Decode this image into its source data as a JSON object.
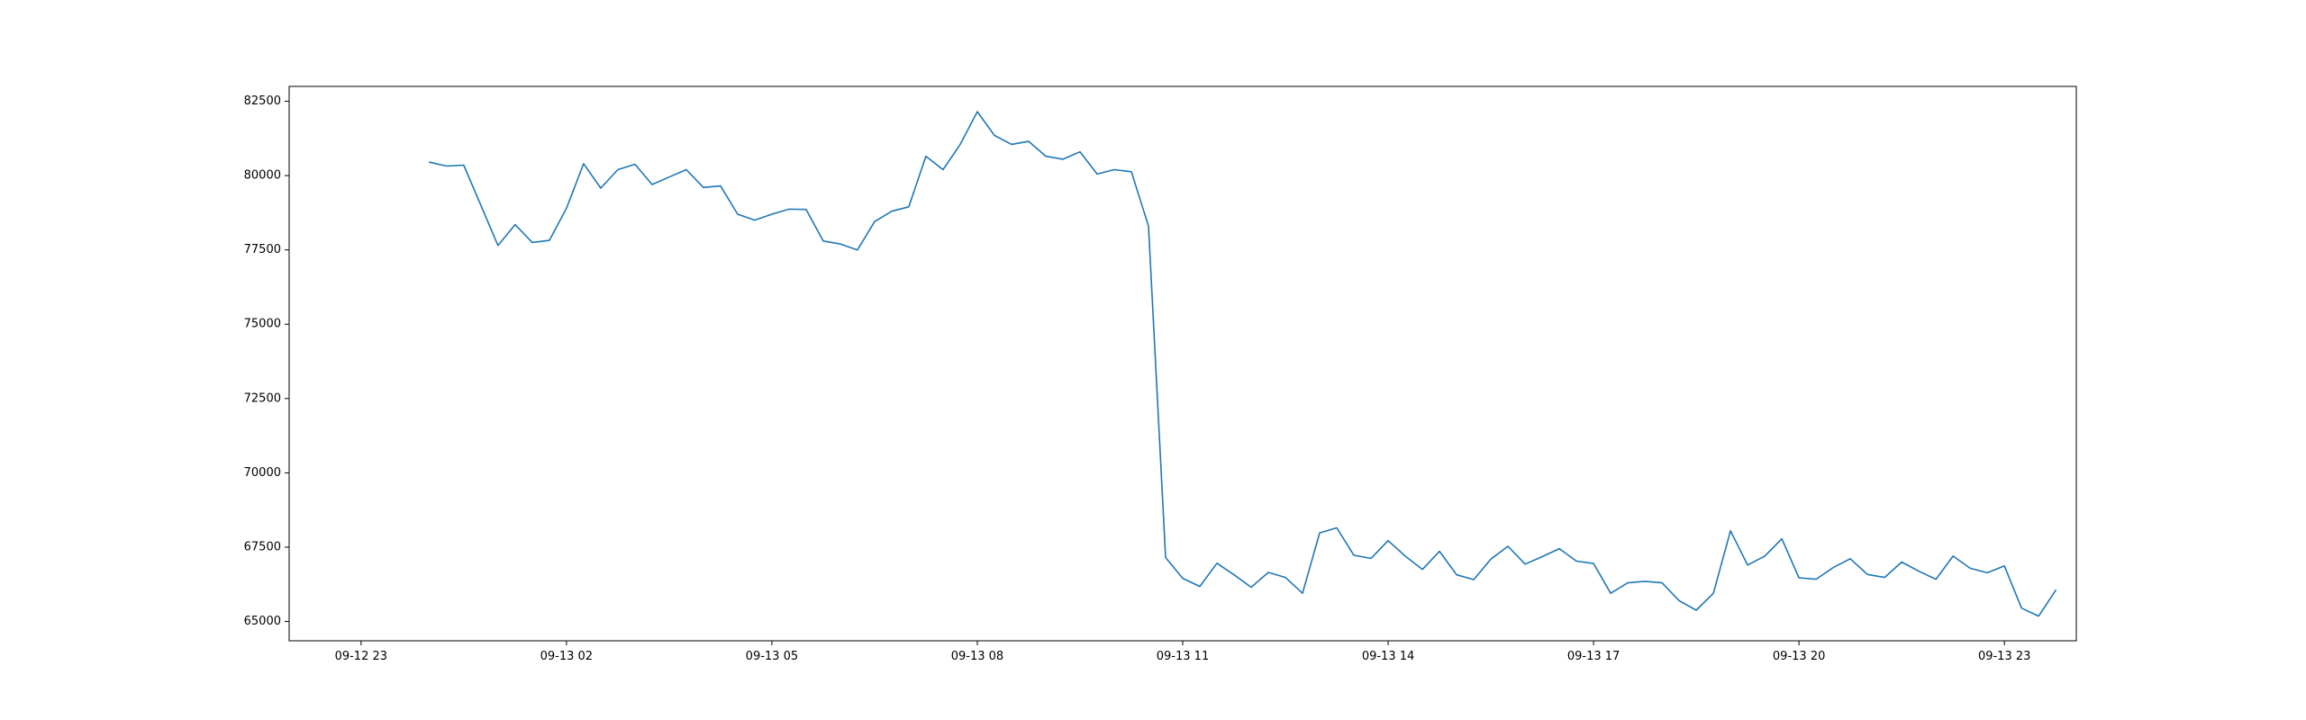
{
  "chart_data": {
    "type": "line",
    "title": "",
    "xlabel": "",
    "ylabel": "",
    "grid": false,
    "line_color": "#1f77b4",
    "xlim": [
      -1.05,
      25.05
    ],
    "ylim": [
      64350,
      83000
    ],
    "x_ticks": [
      {
        "x": 0,
        "label": "09-12 23"
      },
      {
        "x": 3,
        "label": "09-13 02"
      },
      {
        "x": 6,
        "label": "09-13 05"
      },
      {
        "x": 9,
        "label": "09-13 08"
      },
      {
        "x": 12,
        "label": "09-13 11"
      },
      {
        "x": 15,
        "label": "09-13 14"
      },
      {
        "x": 18,
        "label": "09-13 17"
      },
      {
        "x": 21,
        "label": "09-13 20"
      },
      {
        "x": 24,
        "label": "09-13 23"
      }
    ],
    "y_ticks": [
      {
        "y": 65000,
        "label": "65000"
      },
      {
        "y": 67500,
        "label": "67500"
      },
      {
        "y": 70000,
        "label": "70000"
      },
      {
        "y": 72500,
        "label": "72500"
      },
      {
        "y": 75000,
        "label": "75000"
      },
      {
        "y": 77500,
        "label": "77500"
      },
      {
        "y": 80000,
        "label": "80000"
      },
      {
        "y": 82500,
        "label": "82500"
      }
    ],
    "series": [
      {
        "x": [
          1.0,
          1.25,
          1.5,
          1.75,
          2.0,
          2.25,
          2.5,
          2.75,
          3.0,
          3.25,
          3.5,
          3.75,
          4.0,
          4.25,
          4.5,
          4.75,
          5.0,
          5.25,
          5.5,
          5.75,
          6.0,
          6.25,
          6.5,
          6.75,
          7.0,
          7.25,
          7.5,
          7.75,
          8.0,
          8.25,
          8.5,
          8.75,
          9.0,
          9.25,
          9.5,
          9.75,
          10.0,
          10.25,
          10.5,
          10.75,
          11.0,
          11.25,
          11.5,
          11.75,
          12.0,
          12.25,
          12.5,
          12.75,
          13.0,
          13.25,
          13.5,
          13.75,
          14.0,
          14.25,
          14.5,
          14.75,
          15.0,
          15.25,
          15.5,
          15.75,
          16.0,
          16.25,
          16.5,
          16.75,
          17.0,
          17.25,
          17.5,
          17.75,
          18.0,
          18.25,
          18.5,
          18.75,
          19.0,
          19.25,
          19.5,
          19.75,
          20.0,
          20.25,
          20.5,
          20.75,
          21.0,
          21.25,
          21.5,
          21.75,
          22.0,
          22.25,
          22.5,
          22.75,
          23.0,
          23.25,
          23.5,
          23.75,
          24.0,
          24.25,
          24.5,
          24.75
        ],
        "values": [
          80450,
          80320,
          80350,
          79000,
          77650,
          78350,
          77750,
          77820,
          78900,
          80400,
          79580,
          80200,
          80380,
          79700,
          79950,
          80200,
          79600,
          79650,
          78700,
          78500,
          78700,
          78870,
          78860,
          77800,
          77700,
          77500,
          78450,
          78800,
          78950,
          80650,
          80200,
          81050,
          82150,
          81350,
          81050,
          81150,
          80650,
          80550,
          80800,
          80050,
          80200,
          80130,
          78300,
          67150,
          66450,
          66180,
          66960,
          66570,
          66150,
          66650,
          66480,
          65950,
          67980,
          68150,
          67230,
          67120,
          67720,
          67200,
          66750,
          67360,
          66570,
          66410,
          67100,
          67530,
          66930,
          67180,
          67450,
          67030,
          66950,
          65950,
          66300,
          66350,
          66300,
          65700,
          65380,
          65950,
          68050,
          66900,
          67200,
          67780,
          66470,
          66420,
          66810,
          67110,
          66580,
          66480,
          67000,
          66690,
          66420,
          67200,
          66790,
          66640,
          66870,
          65450,
          65180,
          66050
        ]
      }
    ]
  }
}
